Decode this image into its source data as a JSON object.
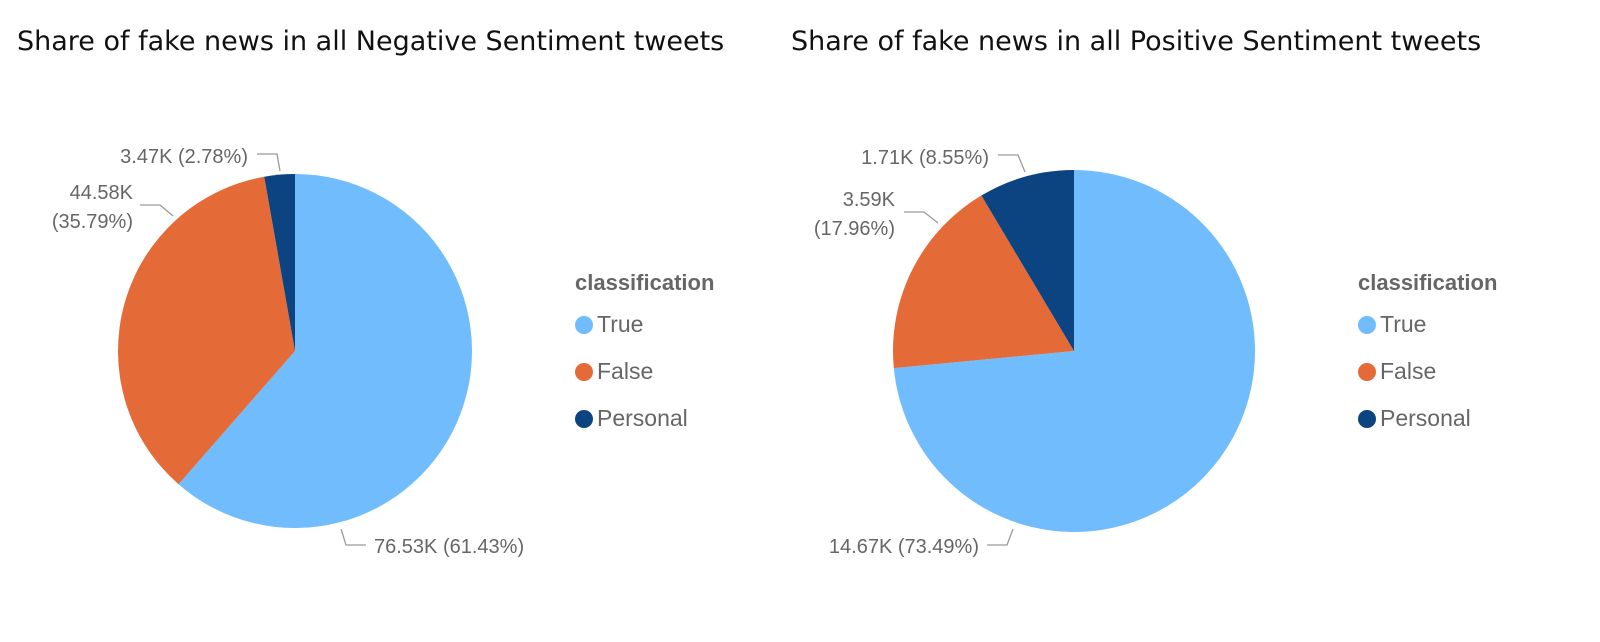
{
  "chart_data": [
    {
      "type": "pie",
      "title": "Share of fake news in all Negative Sentiment tweets",
      "legend_title": "classification",
      "legend_position": "right",
      "slices": [
        {
          "label": "True",
          "value": 76.53,
          "value_label": "76.53K",
          "percent_label": "(61.43%)",
          "percent": 61.43,
          "color": "#71BCFD"
        },
        {
          "label": "False",
          "value": 44.58,
          "value_label": "44.58K",
          "percent_label": "(35.79%)",
          "percent": 35.79,
          "color": "#E46A37"
        },
        {
          "label": "Personal",
          "value": 3.47,
          "value_label": "3.47K",
          "percent_label": "(2.78%)",
          "percent": 2.78,
          "color": "#0B4480"
        }
      ]
    },
    {
      "type": "pie",
      "title": "Share of fake news in all Positive Sentiment tweets",
      "legend_title": "classification",
      "legend_position": "right",
      "slices": [
        {
          "label": "True",
          "value": 14.67,
          "value_label": "14.67K",
          "percent_label": "(73.49%)",
          "percent": 73.49,
          "color": "#71BCFD"
        },
        {
          "label": "False",
          "value": 3.59,
          "value_label": "3.59K",
          "percent_label": "(17.96%)",
          "percent": 17.96,
          "color": "#E46A37"
        },
        {
          "label": "Personal",
          "value": 1.71,
          "value_label": "1.71K",
          "percent_label": "(8.55%)",
          "percent": 8.55,
          "color": "#0B4480"
        }
      ]
    }
  ]
}
